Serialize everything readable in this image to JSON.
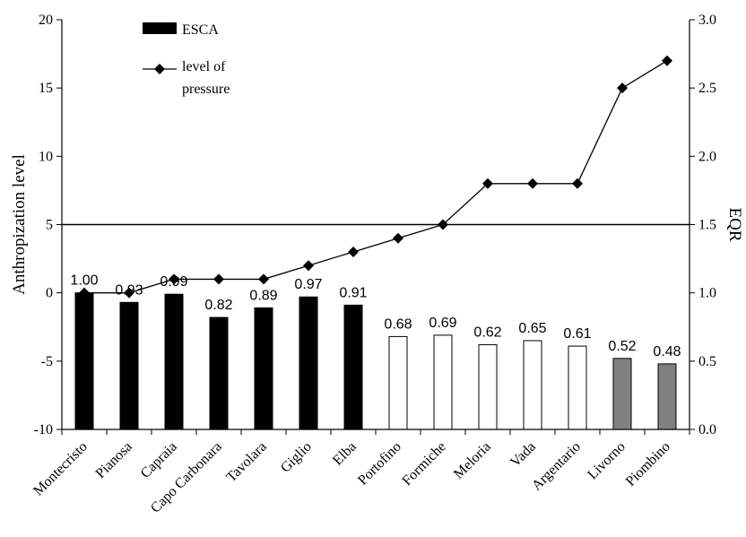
{
  "chart_data": {
    "type": "bar",
    "categories": [
      "Montecristo",
      "Pianosa",
      "Capraia",
      "Capo Carbonara",
      "Tavolara",
      "Giglio",
      "Elba",
      "Portofino",
      "Formiche",
      "Meloria",
      "Vada",
      "Argentario",
      "Livorno",
      "Piombino"
    ],
    "ylabel": "Anthropization level",
    "y2label": "EQR",
    "ylim": [
      -10,
      20
    ],
    "y2lim": [
      0.0,
      3.0
    ],
    "yticks": [
      "-10",
      "-5",
      "0",
      "5",
      "10",
      "15",
      "20"
    ],
    "y2ticks": [
      "0.0",
      "0.5",
      "1.0",
      "1.5",
      "2.0",
      "2.5",
      "3.0"
    ],
    "reference_line_eqr": 1.5,
    "grid": false,
    "legend_position": "top-left",
    "series": [
      {
        "name": "ESCA",
        "kind": "bar",
        "axis": "right",
        "values": [
          1.0,
          0.93,
          0.99,
          0.82,
          0.89,
          0.97,
          0.91,
          0.68,
          0.69,
          0.62,
          0.65,
          0.61,
          0.52,
          0.48
        ],
        "labels": [
          "1.00",
          "0.93",
          "0.99",
          "0.82",
          "0.89",
          "0.97",
          "0.91",
          "0.68",
          "0.69",
          "0.62",
          "0.65",
          "0.61",
          "0.52",
          "0.48"
        ],
        "fill_colors": [
          "#000000",
          "#000000",
          "#000000",
          "#000000",
          "#000000",
          "#000000",
          "#000000",
          "#ffffff",
          "#ffffff",
          "#ffffff",
          "#ffffff",
          "#ffffff",
          "#808080",
          "#808080"
        ]
      },
      {
        "name": "level of pressure",
        "kind": "line",
        "axis": "left",
        "values": [
          0,
          0,
          1,
          1,
          1,
          2,
          3,
          4,
          5,
          8,
          8,
          8,
          15,
          17
        ]
      }
    ],
    "legend": [
      {
        "text": "ESCA",
        "marker": "filled-rect"
      },
      {
        "text_lines": [
          "level of",
          "pressure"
        ],
        "marker": "line-diamond"
      }
    ]
  }
}
